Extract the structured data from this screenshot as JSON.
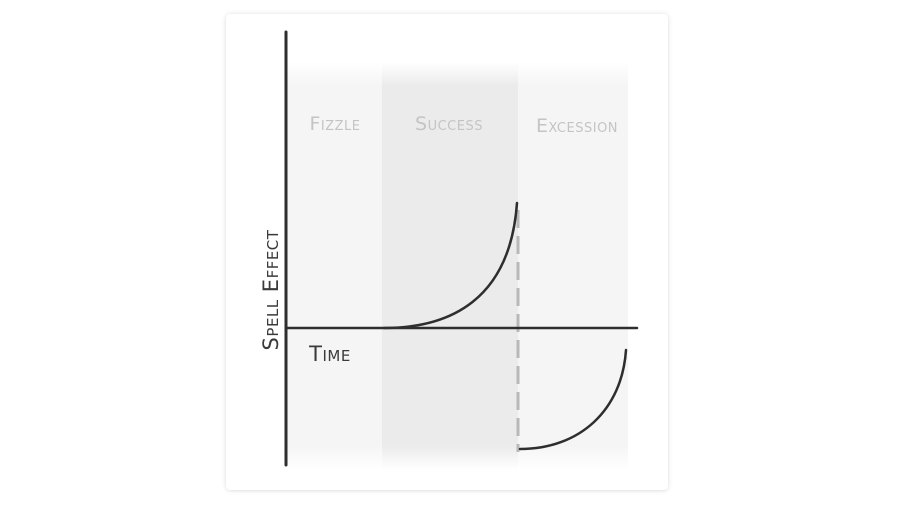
{
  "zones": [
    {
      "label": "Fizzle"
    },
    {
      "label": "Success"
    },
    {
      "label": "Excession"
    }
  ],
  "axes": {
    "y_label": "Spell Effect",
    "x_label": "Time"
  },
  "colors": {
    "ink": "#2e2e2e",
    "zone_light": "#f4f4f4",
    "zone_dark": "#e9e9e9",
    "zone_text": "#c4c4c4",
    "dashed_line": "#b8b8b8"
  }
}
